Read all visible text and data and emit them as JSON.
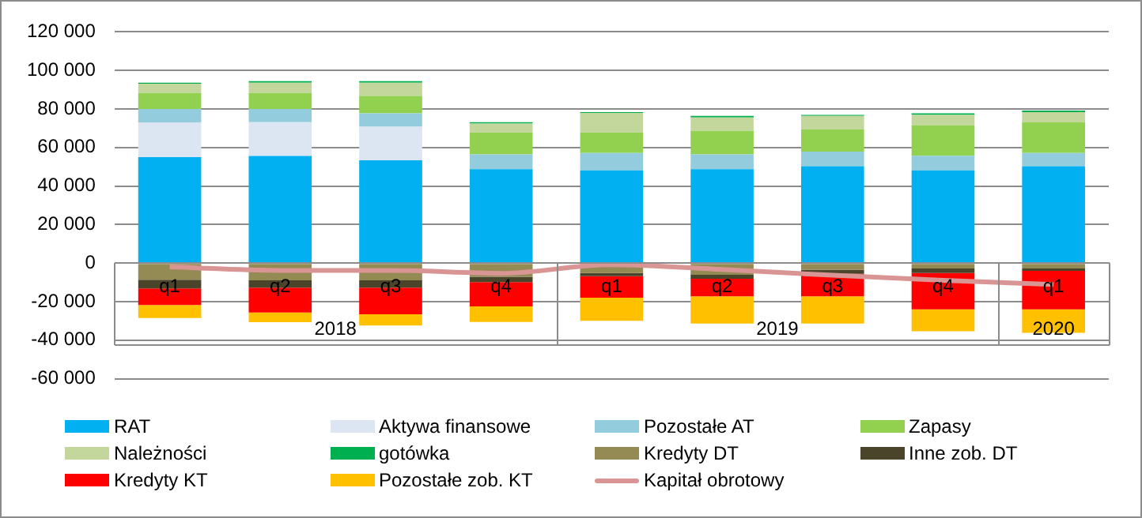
{
  "chart_data": {
    "type": "bar",
    "stacked": true,
    "categories": [
      "q1",
      "q2",
      "q3",
      "q4",
      "q1",
      "q2",
      "q3",
      "q4",
      "q1"
    ],
    "annotations": [
      "2018",
      "2019",
      "2020"
    ],
    "series": [
      {
        "name": "RAT",
        "color": "#00b0f0",
        "values": [
          55000,
          55600,
          53400,
          48800,
          48100,
          48800,
          50300,
          48100,
          50300
        ]
      },
      {
        "name": "Aktywa finansowe",
        "color": "#dce6f2",
        "values": [
          18000,
          17500,
          17400,
          0,
          0,
          0,
          0,
          0,
          0
        ]
      },
      {
        "name": "Pozostałe AT",
        "color": "#93cddd",
        "values": [
          7000,
          6900,
          6900,
          7600,
          9100,
          7600,
          7600,
          7600,
          6900
        ]
      },
      {
        "name": "Zapasy",
        "color": "#92d050",
        "values": [
          8300,
          8300,
          9100,
          11400,
          10600,
          12200,
          11400,
          15900,
          15900
        ]
      },
      {
        "name": "Należności",
        "color": "#c3d69b",
        "values": [
          4800,
          5300,
          6800,
          4600,
          10100,
          7000,
          7100,
          5300,
          5300
        ]
      },
      {
        "name": "gotówka",
        "color": "#00b050",
        "values": [
          500,
          800,
          800,
          700,
          500,
          800,
          500,
          800,
          800
        ]
      },
      {
        "name": "Kredyty DT",
        "color": "#948a54",
        "values": [
          -8600,
          -8900,
          -8900,
          -7100,
          -5100,
          -6100,
          -3500,
          -2800,
          -2800
        ]
      },
      {
        "name": "Inne zob. DT",
        "color": "#4a452a",
        "values": [
          -4500,
          -3800,
          -3800,
          -2800,
          -1700,
          -2000,
          -2100,
          -2300,
          -1200
        ]
      },
      {
        "name": "Kredyty KT",
        "color": "#ff0000",
        "values": [
          -8600,
          -12900,
          -13900,
          -12600,
          -11200,
          -9100,
          -11600,
          -18900,
          -20000
        ]
      },
      {
        "name": "Pozostałe zob. KT",
        "color": "#ffc000",
        "values": [
          -6800,
          -5100,
          -5800,
          -8100,
          -11900,
          -14200,
          -14200,
          -11400,
          -12200
        ]
      },
      {
        "name": "Kapitał obrotowy",
        "type": "line",
        "color": "#d99594",
        "values": [
          -2000,
          -3800,
          -3800,
          -5300,
          -800,
          -3300,
          -6300,
          -8900,
          -11100
        ]
      }
    ],
    "ylim": [
      -60000,
      120000
    ],
    "yticks": [
      {
        "value": -60000,
        "label": "-60 000"
      },
      {
        "value": -40000,
        "label": "-40 000"
      },
      {
        "value": -20000,
        "label": "-20 000"
      },
      {
        "value": 0,
        "label": "0"
      },
      {
        "value": 20000,
        "label": "20 000"
      },
      {
        "value": 40000,
        "label": "40 000"
      },
      {
        "value": 60000,
        "label": "60 000"
      },
      {
        "value": 80000,
        "label": "80 000"
      },
      {
        "value": 100000,
        "label": "100 000"
      },
      {
        "value": 120000,
        "label": "120 000"
      }
    ],
    "grid": "y",
    "legend": "bottom",
    "marker": "none"
  }
}
